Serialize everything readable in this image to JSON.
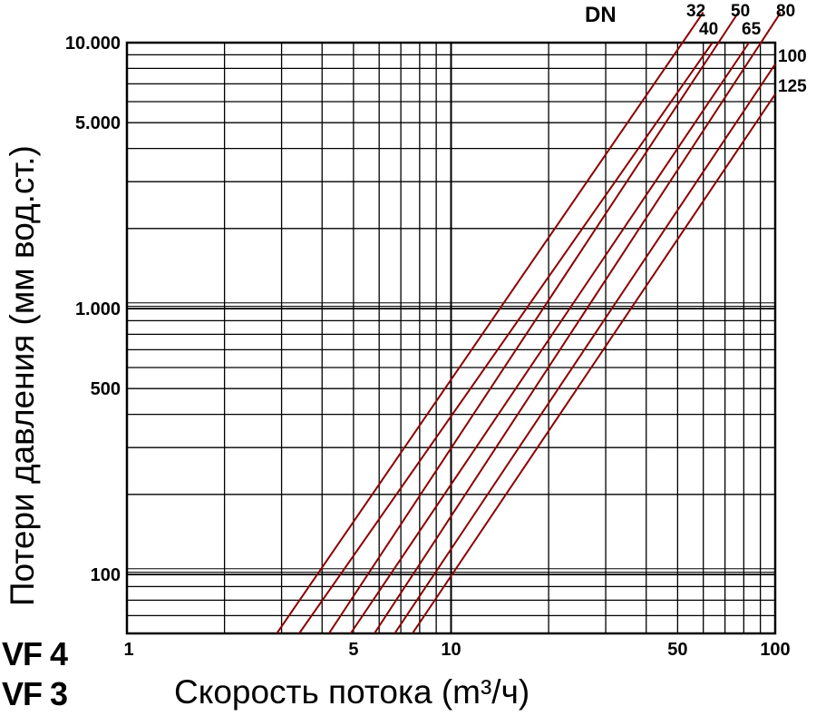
{
  "chart_data": {
    "type": "line",
    "xlabel": "Скорость потока (m³/ч)",
    "ylabel": "Потери давления (мм вод.ст.)",
    "x_scale": "log",
    "y_scale": "log",
    "xlim": [
      1,
      100
    ],
    "ylim": [
      60,
      10000
    ],
    "grid": true,
    "x_ticks": [
      {
        "value": 1,
        "label": "1"
      },
      {
        "value": 5,
        "label": "5"
      },
      {
        "value": 10,
        "label": "10"
      },
      {
        "value": 50,
        "label": "50"
      },
      {
        "value": 100,
        "label": "100"
      }
    ],
    "y_ticks": [
      {
        "value": 100,
        "label": "100"
      },
      {
        "value": 500,
        "label": "500"
      },
      {
        "value": 1000,
        "label": "1.000"
      },
      {
        "value": 5000,
        "label": "5.000"
      },
      {
        "value": 10000,
        "label": "10.000"
      }
    ],
    "series_header": "DN",
    "series": [
      {
        "name": "32",
        "x": [
          2.9,
          60
        ],
        "y": [
          60,
          13000
        ]
      },
      {
        "name": "40",
        "x": [
          3.4,
          64
        ],
        "y": [
          60,
          10000
        ]
      },
      {
        "name": "50",
        "x": [
          4.2,
          77
        ],
        "y": [
          60,
          13000
        ]
      },
      {
        "name": "65",
        "x": [
          4.9,
          83
        ],
        "y": [
          60,
          10000
        ]
      },
      {
        "name": "80",
        "x": [
          5.8,
          104
        ],
        "y": [
          60,
          13000
        ]
      },
      {
        "name": "100",
        "x": [
          6.7,
          100
        ],
        "y": [
          60,
          8300
        ]
      },
      {
        "name": "125",
        "x": [
          7.6,
          100
        ],
        "y": [
          60,
          6400
        ]
      }
    ],
    "line_color": "#8b0000"
  },
  "models": [
    "VF 4",
    "VF 3"
  ]
}
